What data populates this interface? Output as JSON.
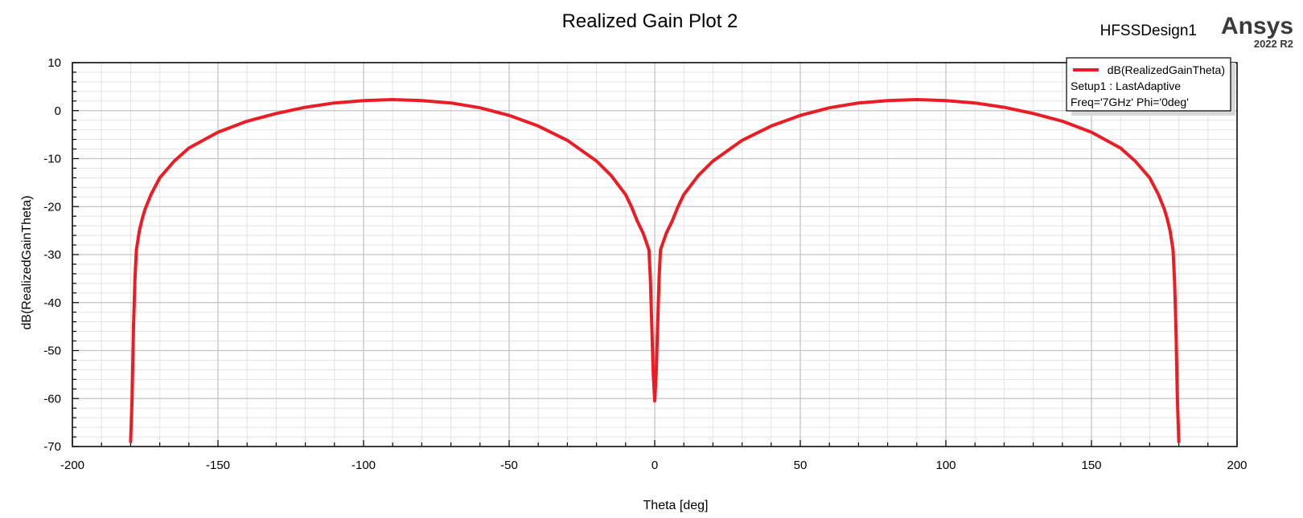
{
  "chart_data": {
    "type": "line",
    "title": "Realized Gain Plot 2",
    "xlabel": "Theta [deg]",
    "ylabel": "dB(RealizedGainTheta)",
    "xlim": [
      -200,
      200
    ],
    "ylim": [
      -70,
      10
    ],
    "xticks": [
      -200,
      -150,
      -100,
      -50,
      0,
      50,
      100,
      150,
      200
    ],
    "yticks": [
      10,
      0,
      -10,
      -20,
      -30,
      -40,
      -50,
      -60,
      -70
    ],
    "grid": true,
    "legend": {
      "position": "top-right",
      "entries": [
        "dB(RealizedGainTheta)"
      ],
      "lines": [
        "Setup1 : LastAdaptive",
        "Freq='7GHz' Phi='0deg'"
      ]
    },
    "series": [
      {
        "name": "dB(RealizedGainTheta)",
        "color": "#ec1c24",
        "x": [
          -180,
          -179.5,
          -179,
          -178.5,
          -178,
          -177,
          -176,
          -175,
          -173,
          -170,
          -165,
          -160,
          -150,
          -140,
          -130,
          -120,
          -110,
          -100,
          -90,
          -80,
          -70,
          -60,
          -50,
          -40,
          -30,
          -20,
          -15,
          -10,
          -8,
          -6,
          -4,
          -2,
          -1.5,
          -1,
          -0.5,
          0,
          0.5,
          1,
          1.5,
          2,
          4,
          6,
          8,
          10,
          15,
          20,
          30,
          40,
          50,
          60,
          70,
          80,
          90,
          100,
          110,
          120,
          130,
          140,
          150,
          160,
          165,
          170,
          173,
          175,
          176,
          177,
          178,
          178.5,
          179,
          179.5,
          180
        ],
        "y": [
          -69,
          -60,
          -45,
          -35,
          -29,
          -25,
          -22.5,
          -20.5,
          -17.5,
          -14,
          -10.5,
          -7.8,
          -4.5,
          -2.2,
          -0.6,
          0.7,
          1.6,
          2.1,
          2.3,
          2.1,
          1.6,
          0.6,
          -1,
          -3.2,
          -6.2,
          -10.5,
          -13.5,
          -17.5,
          -20,
          -23,
          -25.5,
          -29,
          -35,
          -45,
          -55,
          -60.5,
          -55,
          -45,
          -35,
          -29,
          -25.5,
          -23,
          -20,
          -17.5,
          -13.5,
          -10.5,
          -6.2,
          -3.2,
          -1,
          0.6,
          1.6,
          2.1,
          2.3,
          2.1,
          1.6,
          0.7,
          -0.6,
          -2.2,
          -4.5,
          -7.8,
          -10.5,
          -14,
          -17.5,
          -20.5,
          -22.5,
          -25,
          -29,
          -35,
          -45,
          -60,
          -69
        ]
      }
    ]
  },
  "brand": {
    "design": "HFSSDesign1",
    "name": "Ansys",
    "version": "2022 R2"
  }
}
